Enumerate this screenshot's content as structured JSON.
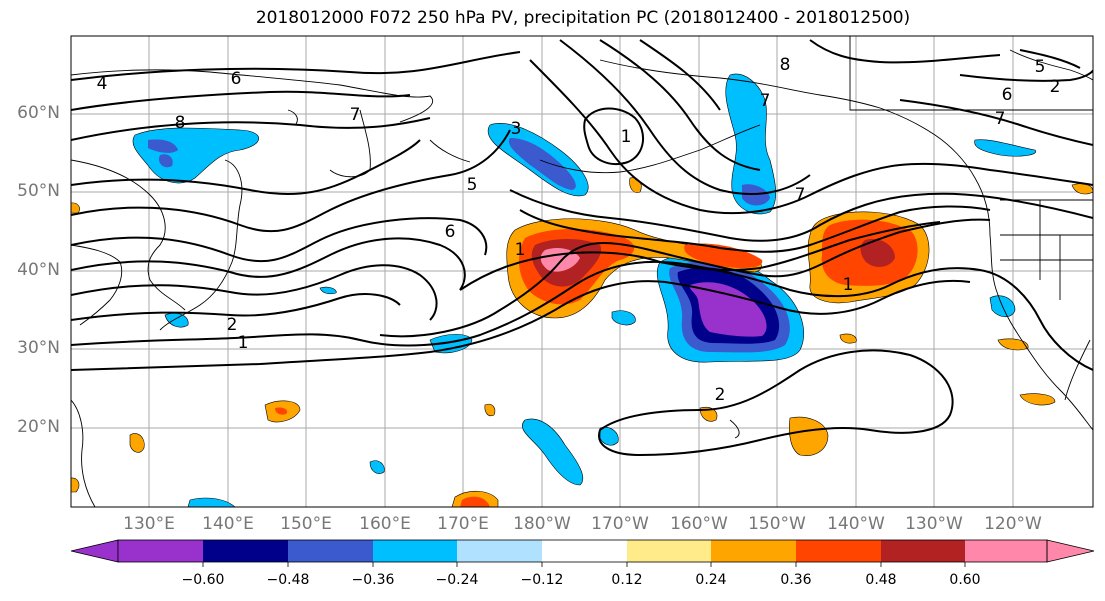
{
  "title": "2018012000 F072 250 hPa PV, precipitation PC (2018012400 - 2018012500)",
  "lat_labels": [
    "60°N",
    "50°N",
    "40°N",
    "30°N",
    "20°N"
  ],
  "lon_labels": [
    "130°E",
    "140°E",
    "150°E",
    "160°E",
    "170°E",
    "180°W",
    "170°W",
    "160°W",
    "150°W",
    "140°W",
    "130°W",
    "120°W"
  ],
  "contour_labels": [
    "4",
    "6",
    "8",
    "7",
    "2",
    "1",
    "3",
    "5",
    "6",
    "1",
    "8",
    "7",
    "7",
    "7",
    "2",
    "1",
    "1",
    "6",
    "5",
    "2"
  ],
  "colorbar": {
    "colors": [
      "#9932CC",
      "#00008B",
      "#3A5ACD",
      "#00BFFF",
      "#B0E2FF",
      "#FFFFFF",
      "#FFEB8A",
      "#FFA500",
      "#FF4500",
      "#B22222",
      "#FF88AA"
    ],
    "ticks": [
      "−0.60",
      "−0.48",
      "−0.36",
      "−0.24",
      "−0.12",
      "0.12",
      "0.24",
      "0.36",
      "0.48",
      "0.60"
    ]
  }
}
